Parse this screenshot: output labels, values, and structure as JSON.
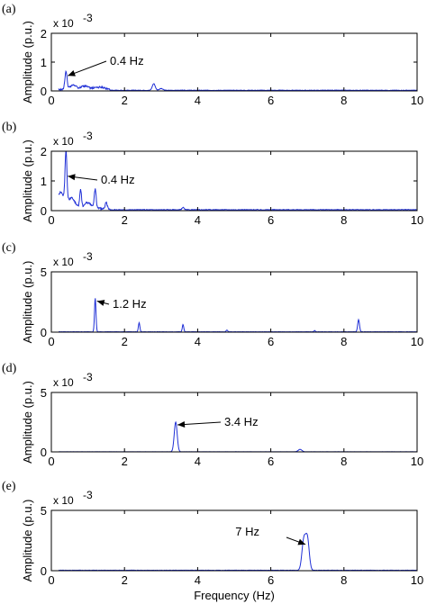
{
  "chart_data": [
    {
      "type": "line",
      "panel_label": "(a)",
      "ylabel": "Amplitude (p.u.)",
      "y_multiplier": "x 10",
      "y_exponent": "-3",
      "xlim": [
        0,
        10
      ],
      "ylim": [
        0,
        2
      ],
      "xticks": [
        "0",
        "2",
        "4",
        "6",
        "8",
        "10"
      ],
      "yticks": [
        "0",
        "1",
        "2"
      ],
      "peaks": [
        {
          "f": 0.4,
          "a": 0.62,
          "w": 0.03
        },
        {
          "f": 0.6,
          "a": 0.15,
          "w": 0.08
        },
        {
          "f": 0.9,
          "a": 0.12,
          "w": 0.1
        },
        {
          "f": 1.3,
          "a": 0.08,
          "w": 0.15
        },
        {
          "f": 2.8,
          "a": 0.23,
          "w": 0.04
        },
        {
          "f": 3.0,
          "a": 0.06,
          "w": 0.05
        }
      ],
      "noise": 0.03,
      "annotation": {
        "text": "0.4 Hz",
        "f": 0.4,
        "a": 0.62
      }
    },
    {
      "type": "line",
      "panel_label": "(b)",
      "ylabel": "Amplitude (p.u.)",
      "y_multiplier": "x 10",
      "y_exponent": "-3",
      "xlim": [
        0,
        10
      ],
      "ylim": [
        0,
        2
      ],
      "xticks": [
        "0",
        "2",
        "4",
        "6",
        "8",
        "10"
      ],
      "yticks": [
        "0",
        "1",
        "2"
      ],
      "peaks": [
        {
          "f": 0.4,
          "a": 1.7,
          "w": 0.025
        },
        {
          "f": 0.25,
          "a": 0.55,
          "w": 0.1
        },
        {
          "f": 0.55,
          "a": 0.35,
          "w": 0.1
        },
        {
          "f": 0.8,
          "a": 0.6,
          "w": 0.025
        },
        {
          "f": 1.0,
          "a": 0.2,
          "w": 0.1
        },
        {
          "f": 1.2,
          "a": 0.65,
          "w": 0.025
        },
        {
          "f": 1.5,
          "a": 0.2,
          "w": 0.03
        },
        {
          "f": 3.6,
          "a": 0.08,
          "w": 0.03
        }
      ],
      "noise": 0.04,
      "annotation": {
        "text": "0.4 Hz",
        "f": 0.4,
        "a": 1.25
      }
    },
    {
      "type": "line",
      "panel_label": "(c)",
      "ylabel": "Amplitude (p.u.)",
      "y_multiplier": "x 10",
      "y_exponent": "-3",
      "xlim": [
        0,
        10
      ],
      "ylim": [
        0,
        5
      ],
      "xticks": [
        "0",
        "2",
        "4",
        "6",
        "8",
        "10"
      ],
      "yticks": [
        "0",
        "5"
      ],
      "peaks": [
        {
          "f": 1.2,
          "a": 2.8,
          "w": 0.02
        },
        {
          "f": 2.4,
          "a": 0.75,
          "w": 0.02
        },
        {
          "f": 3.6,
          "a": 0.6,
          "w": 0.02
        },
        {
          "f": 4.8,
          "a": 0.15,
          "w": 0.02
        },
        {
          "f": 8.4,
          "a": 1.0,
          "w": 0.025
        },
        {
          "f": 7.2,
          "a": 0.1,
          "w": 0.02
        }
      ],
      "noise": 0.04,
      "annotation": {
        "text": "1.2 Hz",
        "f": 1.2,
        "a": 2.8
      }
    },
    {
      "type": "line",
      "panel_label": "(d)",
      "ylabel": "Amplitude (p.u.)",
      "y_multiplier": "x 10",
      "y_exponent": "-3",
      "xlim": [
        0,
        10
      ],
      "ylim": [
        0,
        5
      ],
      "xticks": [
        "0",
        "2",
        "4",
        "6",
        "8",
        "10"
      ],
      "yticks": [
        "0",
        "5"
      ],
      "peaks": [
        {
          "f": 3.4,
          "a": 2.5,
          "w": 0.04
        },
        {
          "f": 6.8,
          "a": 0.2,
          "w": 0.05
        }
      ],
      "noise": 0.015,
      "annotation": {
        "text": "3.4 Hz",
        "f": 3.4,
        "a": 2.5
      }
    },
    {
      "type": "line",
      "panel_label": "(e)",
      "ylabel": "Amplitude (p.u.)",
      "xlabel": "Frequency (Hz)",
      "y_multiplier": "x 10",
      "y_exponent": "-3",
      "xlim": [
        0,
        10
      ],
      "ylim": [
        0,
        5
      ],
      "xticks": [
        "0",
        "2",
        "4",
        "6",
        "8",
        "10"
      ],
      "yticks": [
        "0",
        "5"
      ],
      "peaks": [
        {
          "f": 6.9,
          "a": 2.4,
          "w": 0.05
        },
        {
          "f": 7.0,
          "a": 2.6,
          "w": 0.05
        }
      ],
      "noise": 0.05,
      "annotation": {
        "text": "7 Hz",
        "f": 6.9,
        "a": 2.4
      }
    }
  ]
}
